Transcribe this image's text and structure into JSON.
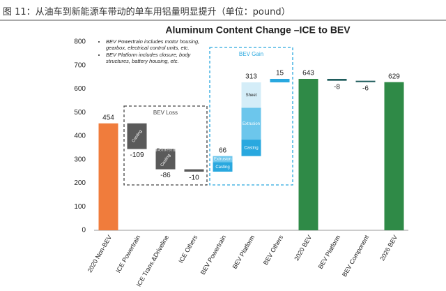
{
  "header": "图 11：从油车到新能源车带动的单车用铝量明显提升（单位：pound）",
  "chart_data": {
    "type": "waterfall",
    "title": "Aluminum Content Change –ICE to BEV",
    "categories": [
      "2020 Non-BEV",
      "ICE Powertrain",
      "ICE Trans.&Driveline",
      "ICE Others",
      "BEV Powertrain",
      "BEV Platform",
      "BEV Others",
      "2020 BEV",
      "BEV Platform",
      "BEV Component",
      "2026 BEV"
    ],
    "values": [
      454,
      -109,
      -86,
      -10,
      66,
      313,
      15,
      643,
      -8,
      -6,
      629
    ],
    "measure": [
      "absolute",
      "relative",
      "relative",
      "relative",
      "relative",
      "relative",
      "relative",
      "absolute",
      "relative",
      "relative",
      "absolute"
    ],
    "colors": [
      "#f07c3c",
      "#5a5a5a",
      "#5a5a5a",
      "#5a5a5a",
      "#29a8df",
      "#29a8df",
      "#29a8df",
      "#2f8a47",
      "#1f5c5c",
      "#1f5c5c",
      "#2f8a47"
    ],
    "segments": [
      null,
      [
        {
          "name": "Casting",
          "value": -109,
          "color": "#5a5a5a"
        }
      ],
      [
        {
          "name": "Extrusion",
          "value": -10,
          "color": "#a6a6a6"
        },
        {
          "name": "Casting",
          "value": -76,
          "color": "#5a5a5a"
        }
      ],
      null,
      [
        {
          "name": "Casting",
          "value": 40,
          "color": "#29a8df"
        },
        {
          "name": "Extrusion",
          "value": 26,
          "color": "#6cc6ec"
        }
      ],
      [
        {
          "name": "Casting",
          "value": 70,
          "color": "#29a8df"
        },
        {
          "name": "Extrusion",
          "value": 135,
          "color": "#6cc6ec"
        },
        {
          "name": "Sheet",
          "value": 108,
          "color": "#d4edf8"
        }
      ],
      null,
      null,
      null,
      null,
      null
    ],
    "groups": [
      {
        "label": "BEV Loss",
        "from": 1,
        "to": 3,
        "color": "#444444"
      },
      {
        "label": "BEV Gain",
        "from": 4,
        "to": 6,
        "color": "#29a8df"
      }
    ],
    "notes": [
      "BEV Powertrain includes motor housing, gearbox, electrical control units, etc.",
      "BEV Platform includes closure, body structures, battery housing, etc."
    ],
    "ylim": [
      0,
      800
    ],
    "yticks": [
      0,
      100,
      200,
      300,
      400,
      500,
      600,
      700,
      800
    ],
    "grid": false
  }
}
